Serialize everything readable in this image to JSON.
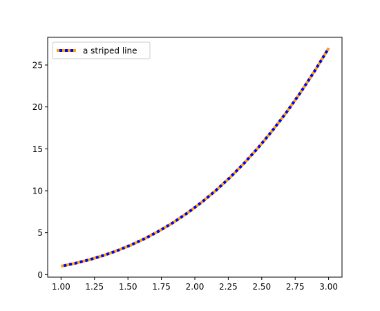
{
  "chart_data": {
    "type": "line",
    "title": "",
    "xlabel": "",
    "ylabel": "",
    "xlim": [
      0.9,
      3.1
    ],
    "ylim": [
      -0.3,
      28.3
    ],
    "xticks": [
      1.0,
      1.25,
      1.5,
      1.75,
      2.0,
      2.25,
      2.5,
      2.75,
      3.0
    ],
    "xtick_labels": [
      "1.00",
      "1.25",
      "1.50",
      "1.75",
      "2.00",
      "2.25",
      "2.50",
      "2.75",
      "3.00"
    ],
    "yticks": [
      0,
      5,
      10,
      15,
      20,
      25
    ],
    "ytick_labels": [
      "0",
      "5",
      "10",
      "15",
      "20",
      "25"
    ],
    "grid": false,
    "legend_position": "top-left",
    "series": [
      {
        "name": "a striped line",
        "colors": {
          "base": "#FFA500",
          "dash": "#0000FF"
        },
        "x": [
          1.0,
          1.1053,
          1.2105,
          1.3158,
          1.4211,
          1.5263,
          1.6316,
          1.7368,
          1.8421,
          1.9474,
          2.0526,
          2.1579,
          2.2632,
          2.3684,
          2.4737,
          2.5789,
          2.6842,
          2.7895,
          2.8947,
          3.0
        ],
        "values": [
          1.0,
          1.35,
          1.774,
          2.278,
          2.87,
          3.556,
          4.344,
          5.24,
          6.251,
          7.385,
          8.649,
          10.048,
          11.591,
          13.286,
          15.137,
          17.152,
          19.339,
          21.706,
          24.259,
          27.0
        ]
      }
    ]
  }
}
